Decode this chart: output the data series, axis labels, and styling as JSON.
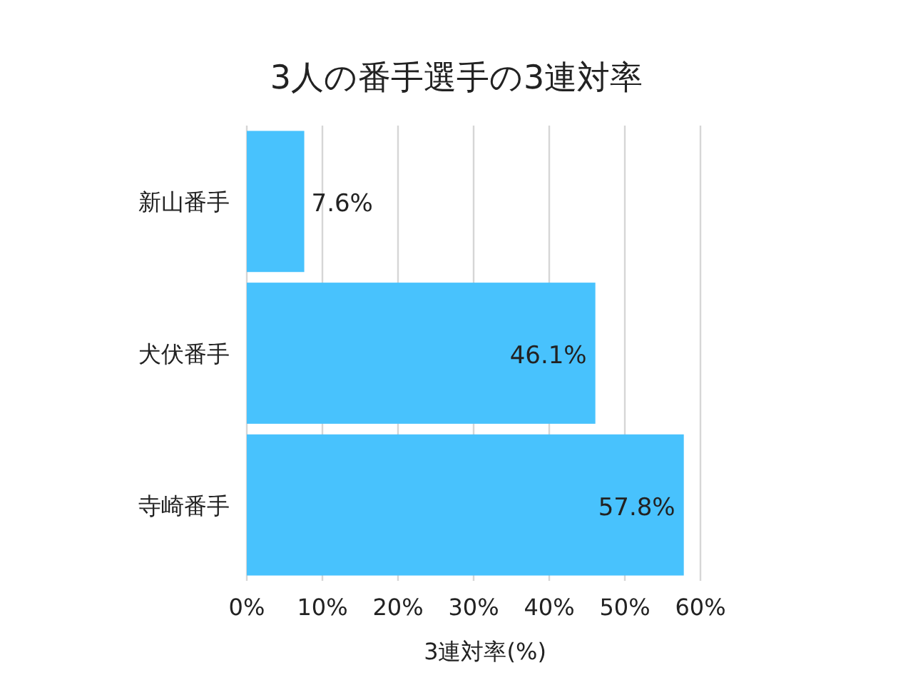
{
  "chart_data": {
    "type": "bar",
    "orientation": "horizontal",
    "title": "3人の番手選手の3連対率",
    "xlabel": "3連対率(%)",
    "categories": [
      "新山番手",
      "犬伏番手",
      "寺崎番手"
    ],
    "values": [
      7.6,
      46.1,
      57.8
    ],
    "color": "#48c2fd",
    "value_labels": [
      "7.6%",
      "46.1%",
      "57.8%"
    ],
    "xlim": [
      0,
      60
    ],
    "xticks": [
      {
        "value": 0,
        "label": "0%"
      },
      {
        "value": 10,
        "label": "10%"
      },
      {
        "value": 20,
        "label": "20%"
      },
      {
        "value": 30,
        "label": "30%"
      },
      {
        "value": 40,
        "label": "40%"
      },
      {
        "value": 50,
        "label": "50%"
      },
      {
        "value": 60,
        "label": "60%"
      }
    ],
    "grid": "x"
  }
}
